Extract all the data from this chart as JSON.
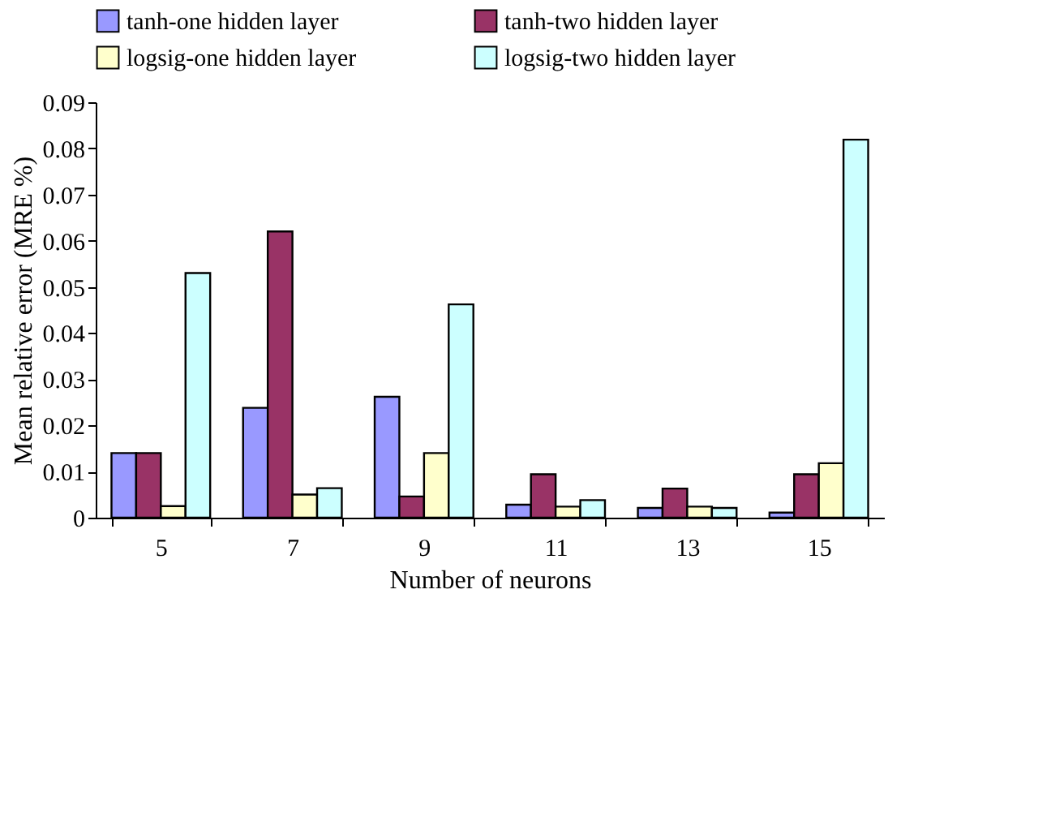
{
  "chart_data": {
    "type": "bar",
    "xlabel": "Number of neurons",
    "ylabel": "Mean relative error (MRE %)",
    "categories": [
      "5",
      "7",
      "9",
      "11",
      "13",
      "15"
    ],
    "series": [
      {
        "name": "tanh-one hidden layer",
        "color": "#9999ff",
        "values": [
          0.014,
          0.0238,
          0.0262,
          0.0028,
          0.0021,
          0.0011
        ]
      },
      {
        "name": "tanh-two hidden layer",
        "color": "#993366",
        "values": [
          0.014,
          0.062,
          0.0046,
          0.0094,
          0.0063,
          0.0094
        ]
      },
      {
        "name": "logsig-one hidden layer",
        "color": "#ffffcc",
        "values": [
          0.0025,
          0.005,
          0.014,
          0.0024,
          0.0024,
          0.0118
        ]
      },
      {
        "name": "logsig-two hidden layer",
        "color": "#ccffff",
        "values": [
          0.053,
          0.0064,
          0.0462,
          0.0038,
          0.0021,
          0.0819
        ]
      }
    ],
    "ylim": [
      0,
      0.09
    ],
    "yticks": [
      0,
      0.01,
      0.02,
      0.03,
      0.04,
      0.05,
      0.06,
      0.07,
      0.08,
      0.09
    ],
    "grid": false,
    "legend": "top"
  }
}
